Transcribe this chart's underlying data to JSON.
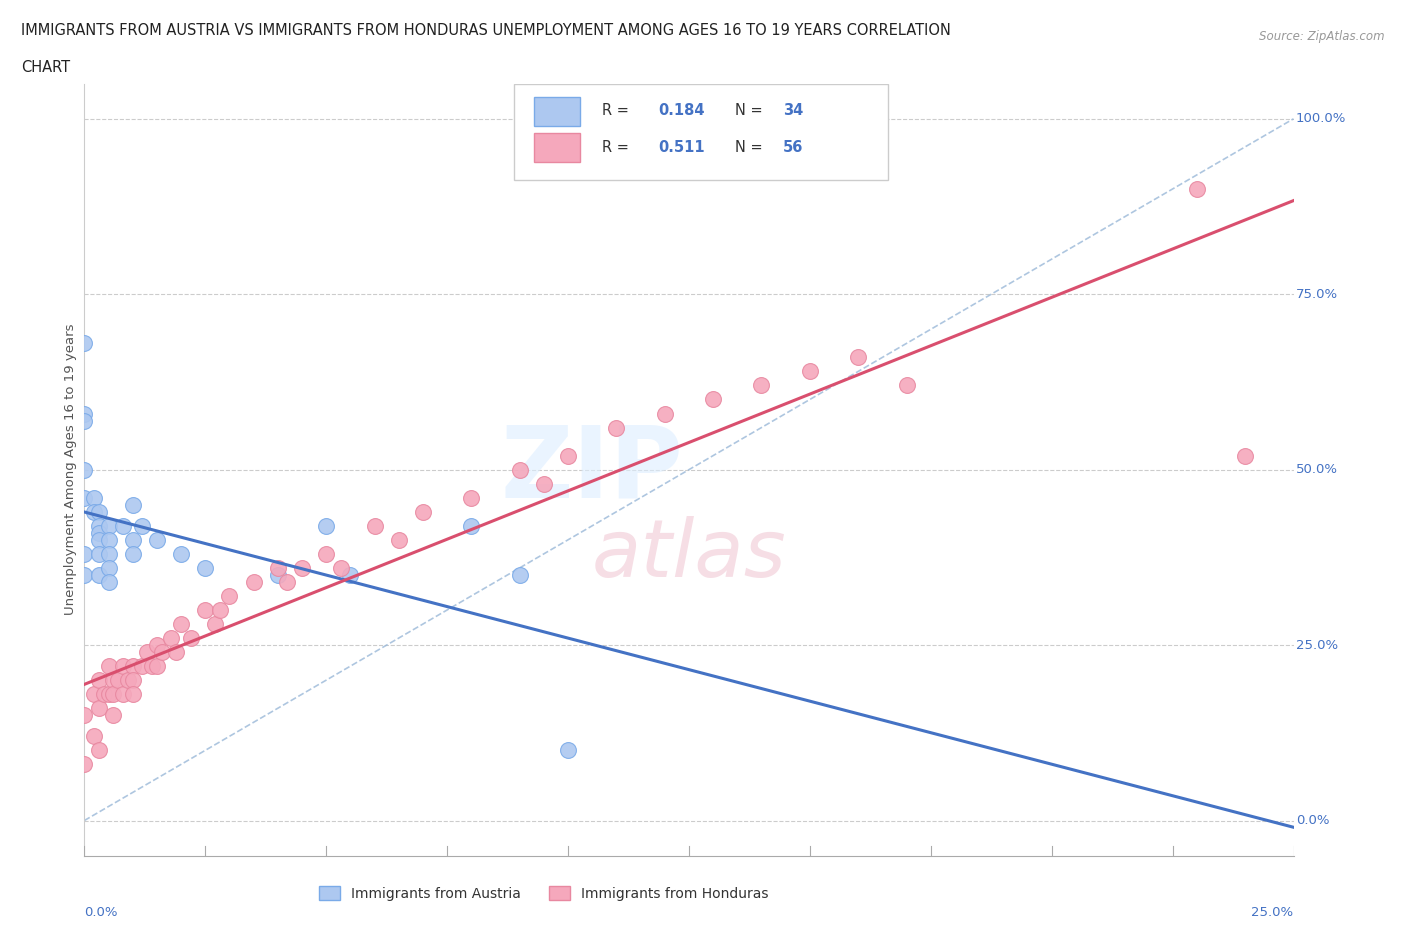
{
  "title_line1": "IMMIGRANTS FROM AUSTRIA VS IMMIGRANTS FROM HONDURAS UNEMPLOYMENT AMONG AGES 16 TO 19 YEARS CORRELATION",
  "title_line2": "CHART",
  "source": "Source: ZipAtlas.com",
  "ylabel": "Unemployment Among Ages 16 to 19 years",
  "austria_R": 0.184,
  "austria_N": 34,
  "honduras_R": 0.511,
  "honduras_N": 56,
  "austria_color": "#adc8f0",
  "honduras_color": "#f5a8bc",
  "austria_line_color": "#4472c4",
  "honduras_line_color": "#d94f6e",
  "ref_line_color": "#9ab8d8",
  "background_color": "#ffffff",
  "xlim": [
    0.0,
    0.25
  ],
  "ylim": [
    -0.05,
    1.05
  ],
  "yticks": [
    0.0,
    0.25,
    0.5,
    0.75,
    1.0
  ],
  "ytick_labels": [
    "0.0%",
    "25.0%",
    "50.0%",
    "75.0%",
    "100.0%"
  ],
  "xtick_left_label": "0.0%",
  "xtick_right_label": "25.0%",
  "austria_x": [
    0.0,
    0.0,
    0.0,
    0.0,
    0.0,
    0.0,
    0.0,
    0.002,
    0.002,
    0.003,
    0.003,
    0.003,
    0.003,
    0.003,
    0.003,
    0.005,
    0.005,
    0.005,
    0.005,
    0.005,
    0.008,
    0.01,
    0.01,
    0.01,
    0.012,
    0.015,
    0.02,
    0.025,
    0.04,
    0.05,
    0.055,
    0.08,
    0.09,
    0.1
  ],
  "austria_y": [
    0.68,
    0.58,
    0.57,
    0.5,
    0.46,
    0.38,
    0.35,
    0.46,
    0.44,
    0.44,
    0.42,
    0.41,
    0.4,
    0.38,
    0.35,
    0.42,
    0.4,
    0.38,
    0.36,
    0.34,
    0.42,
    0.4,
    0.38,
    0.45,
    0.42,
    0.4,
    0.38,
    0.36,
    0.35,
    0.42,
    0.35,
    0.42,
    0.35,
    0.1
  ],
  "honduras_x": [
    0.0,
    0.0,
    0.002,
    0.002,
    0.003,
    0.003,
    0.003,
    0.004,
    0.005,
    0.005,
    0.006,
    0.006,
    0.006,
    0.007,
    0.008,
    0.008,
    0.009,
    0.01,
    0.01,
    0.01,
    0.012,
    0.013,
    0.014,
    0.015,
    0.015,
    0.016,
    0.018,
    0.019,
    0.02,
    0.022,
    0.025,
    0.027,
    0.028,
    0.03,
    0.035,
    0.04,
    0.042,
    0.045,
    0.05,
    0.053,
    0.06,
    0.065,
    0.07,
    0.08,
    0.09,
    0.095,
    0.1,
    0.11,
    0.12,
    0.13,
    0.14,
    0.15,
    0.16,
    0.17,
    0.23,
    0.24
  ],
  "honduras_y": [
    0.15,
    0.08,
    0.18,
    0.12,
    0.2,
    0.16,
    0.1,
    0.18,
    0.22,
    0.18,
    0.2,
    0.18,
    0.15,
    0.2,
    0.22,
    0.18,
    0.2,
    0.22,
    0.2,
    0.18,
    0.22,
    0.24,
    0.22,
    0.25,
    0.22,
    0.24,
    0.26,
    0.24,
    0.28,
    0.26,
    0.3,
    0.28,
    0.3,
    0.32,
    0.34,
    0.36,
    0.34,
    0.36,
    0.38,
    0.36,
    0.42,
    0.4,
    0.44,
    0.46,
    0.5,
    0.48,
    0.52,
    0.56,
    0.58,
    0.6,
    0.62,
    0.64,
    0.66,
    0.62,
    0.9,
    0.52
  ]
}
